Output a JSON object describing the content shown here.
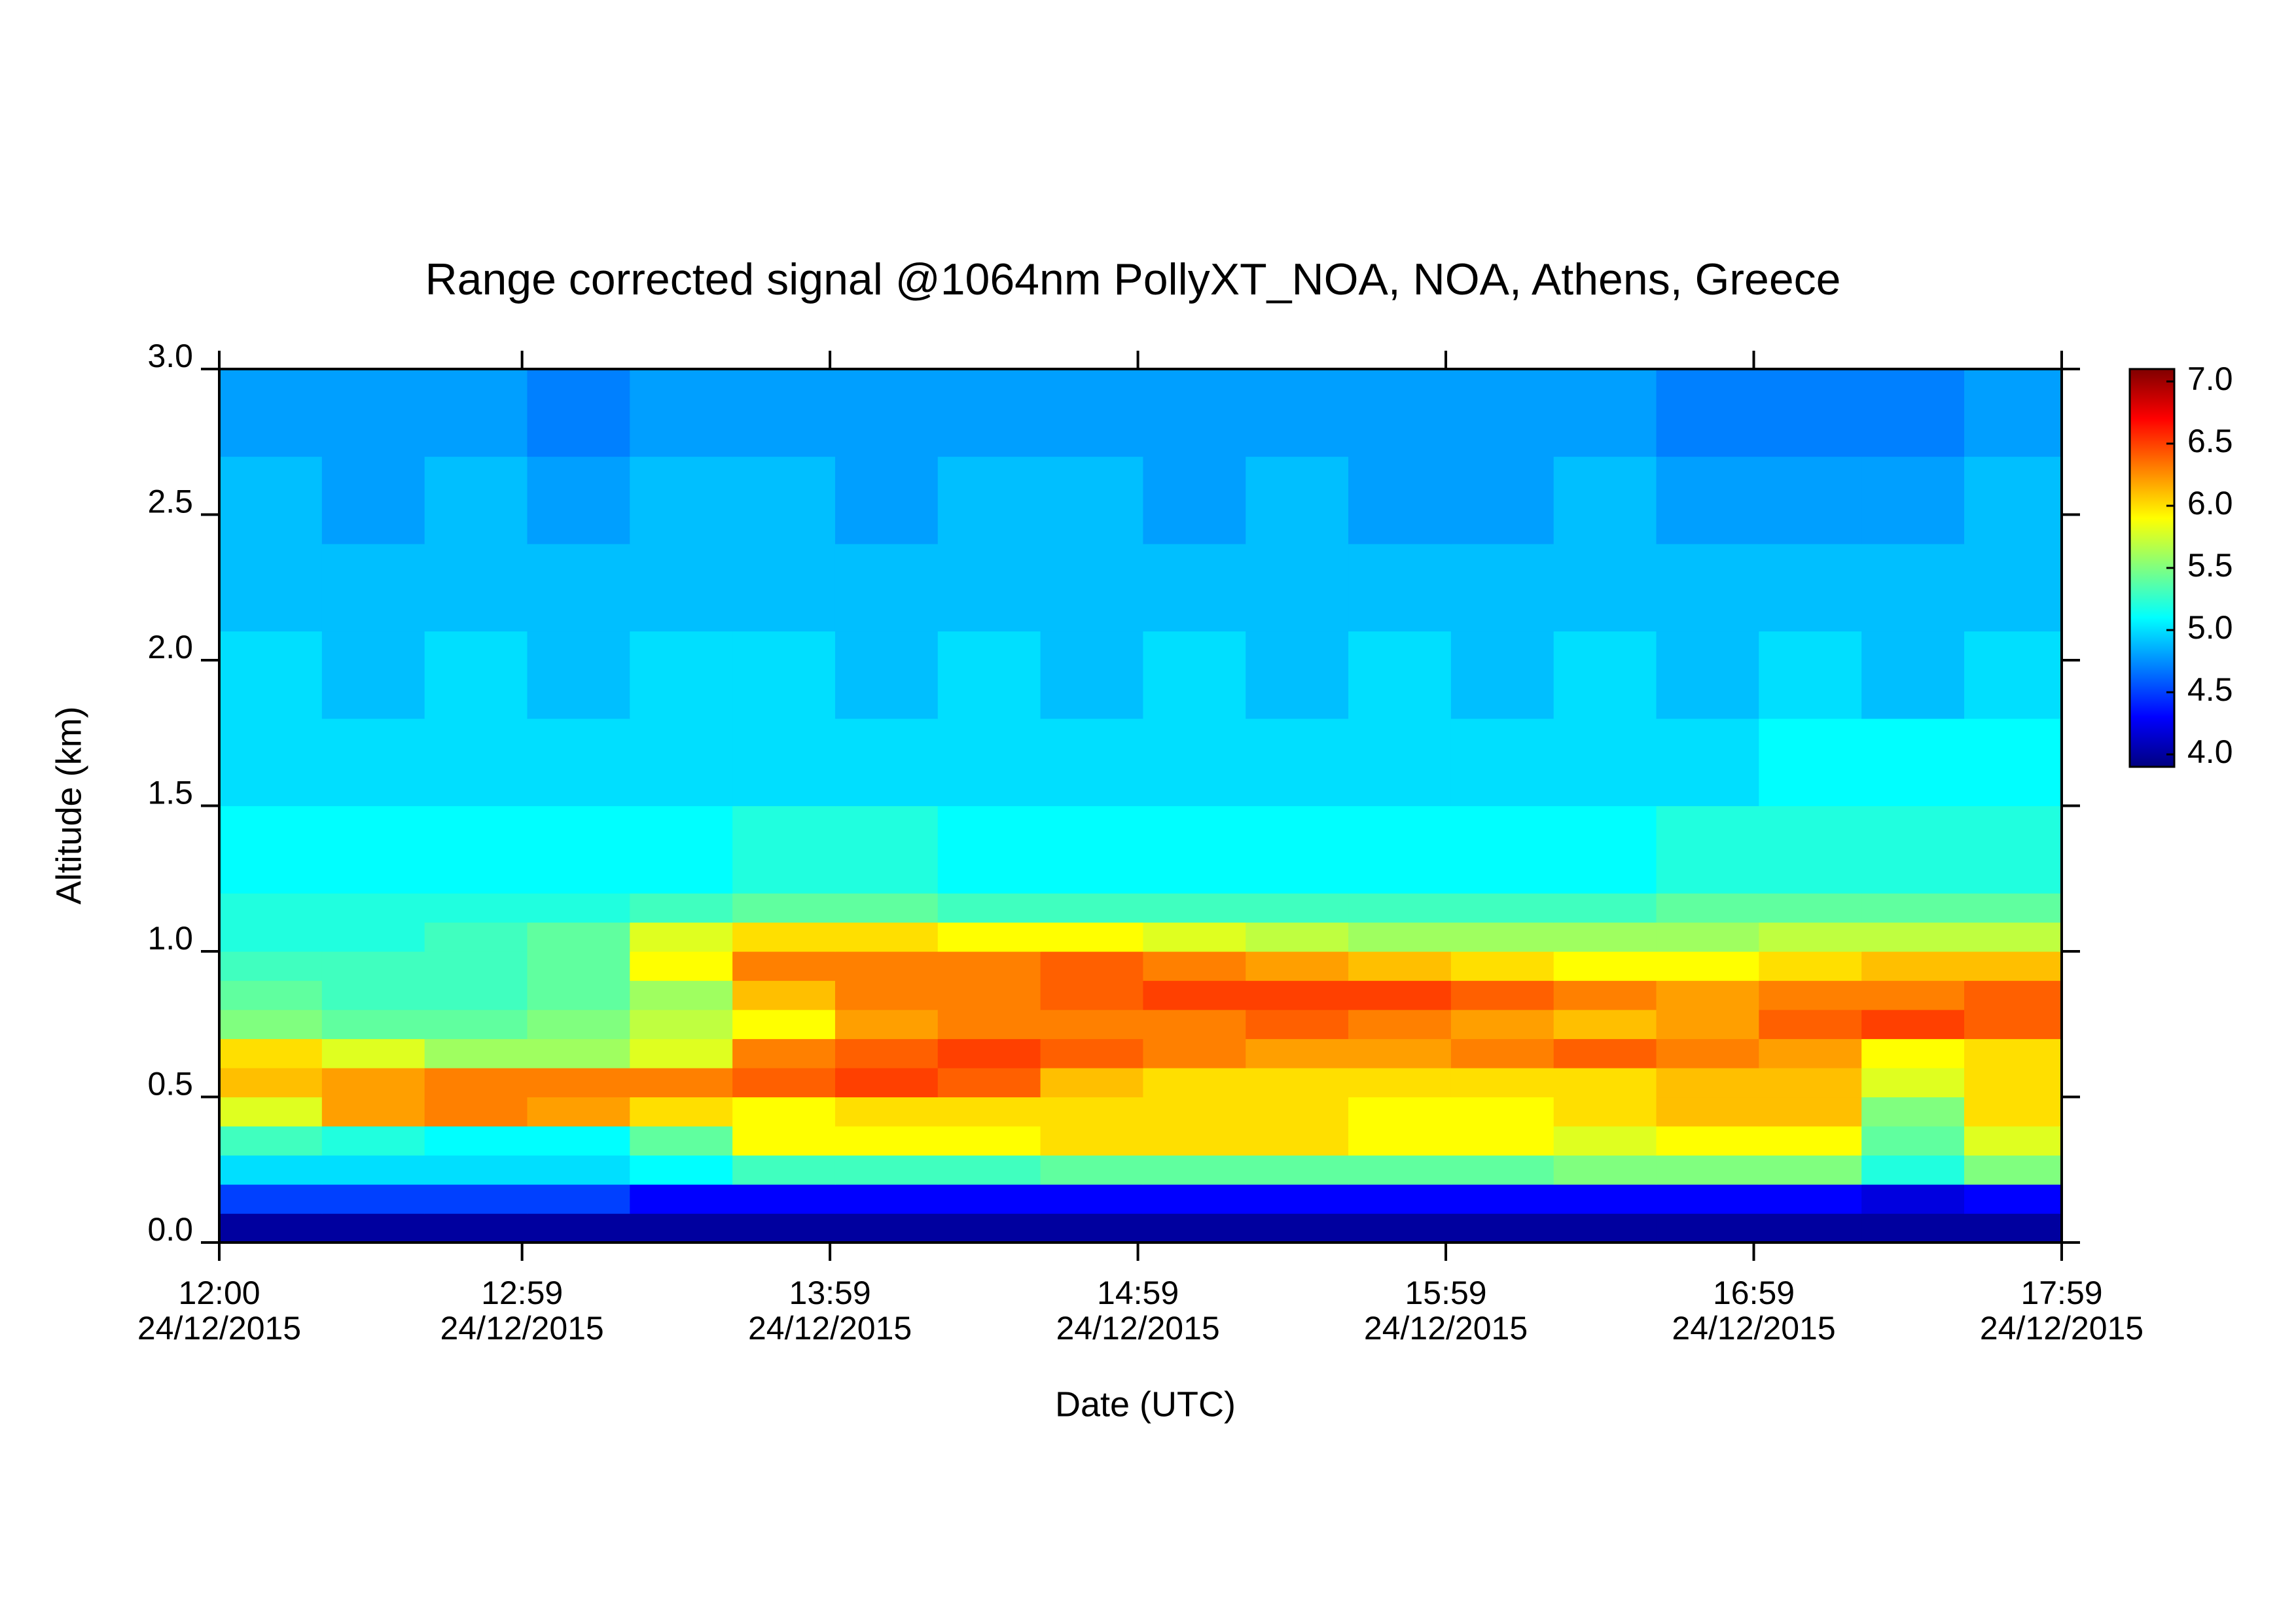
{
  "chart_data": {
    "type": "heatmap",
    "title": "Range corrected signal @1064nm  PollyXT_NOA, NOA, Athens, Greece",
    "xlabel": "Date (UTC)",
    "ylabel": "Altitude (km)",
    "colormap": "jet",
    "x": [
      "2015-12-24T12:00",
      "2015-12-24T12:20",
      "2015-12-24T12:40",
      "2015-12-24T13:00",
      "2015-12-24T13:20",
      "2015-12-24T13:40",
      "2015-12-24T14:00",
      "2015-12-24T14:20",
      "2015-12-24T14:40",
      "2015-12-24T15:00",
      "2015-12-24T15:20",
      "2015-12-24T15:40",
      "2015-12-24T16:00",
      "2015-12-24T16:20",
      "2015-12-24T16:40",
      "2015-12-24T17:00",
      "2015-12-24T17:20",
      "2015-12-24T17:40"
    ],
    "y": [
      0.0,
      0.1,
      0.2,
      0.3,
      0.4,
      0.5,
      0.6,
      0.7,
      0.8,
      0.9,
      1.0,
      1.1,
      1.2,
      1.5,
      1.8,
      2.1,
      2.4,
      2.7
    ],
    "z": [
      [
        4.0,
        4.0,
        4.0,
        4.0,
        4.0,
        4.0,
        4.0,
        4.0,
        4.0,
        4.0,
        4.0,
        4.0,
        4.0,
        4.0,
        4.0,
        4.0,
        4.0,
        4.0
      ],
      [
        4.5,
        4.5,
        4.5,
        4.5,
        4.3,
        4.3,
        4.3,
        4.3,
        4.3,
        4.3,
        4.3,
        4.3,
        4.3,
        4.3,
        4.3,
        4.3,
        4.2,
        4.3
      ],
      [
        5.0,
        5.0,
        5.0,
        5.0,
        5.1,
        5.3,
        5.3,
        5.3,
        5.4,
        5.4,
        5.4,
        5.4,
        5.4,
        5.5,
        5.5,
        5.5,
        5.2,
        5.5
      ],
      [
        5.3,
        5.2,
        5.1,
        5.1,
        5.4,
        5.9,
        5.9,
        5.9,
        6.0,
        6.0,
        6.0,
        5.9,
        5.9,
        5.8,
        5.9,
        5.9,
        5.4,
        5.8
      ],
      [
        5.8,
        6.2,
        6.3,
        6.2,
        6.0,
        5.9,
        6.0,
        6.0,
        6.0,
        6.0,
        6.0,
        5.9,
        5.9,
        6.0,
        6.1,
        6.1,
        5.5,
        6.0
      ],
      [
        6.1,
        6.2,
        6.3,
        6.3,
        6.3,
        6.4,
        6.5,
        6.4,
        6.1,
        6.0,
        6.0,
        6.0,
        6.0,
        6.0,
        6.1,
        6.1,
        5.8,
        6.0
      ],
      [
        6.0,
        5.8,
        5.6,
        5.6,
        5.8,
        6.3,
        6.4,
        6.5,
        6.4,
        6.3,
        6.2,
        6.2,
        6.3,
        6.4,
        6.3,
        6.2,
        5.9,
        6.0
      ],
      [
        5.5,
        5.4,
        5.4,
        5.5,
        5.7,
        5.9,
        6.2,
        6.3,
        6.3,
        6.3,
        6.4,
        6.3,
        6.2,
        6.1,
        6.2,
        6.4,
        6.5,
        6.4
      ],
      [
        5.4,
        5.3,
        5.3,
        5.4,
        5.6,
        6.1,
        6.3,
        6.3,
        6.4,
        6.5,
        6.5,
        6.5,
        6.4,
        6.3,
        6.2,
        6.3,
        6.3,
        6.4
      ],
      [
        5.3,
        5.3,
        5.3,
        5.4,
        5.9,
        6.3,
        6.3,
        6.3,
        6.4,
        6.3,
        6.2,
        6.1,
        6.0,
        5.9,
        5.9,
        6.0,
        6.1,
        6.1
      ],
      [
        5.2,
        5.2,
        5.3,
        5.4,
        5.8,
        6.0,
        6.0,
        5.9,
        5.9,
        5.8,
        5.7,
        5.6,
        5.6,
        5.6,
        5.6,
        5.7,
        5.7,
        5.7
      ],
      [
        5.2,
        5.2,
        5.2,
        5.2,
        5.3,
        5.4,
        5.4,
        5.3,
        5.3,
        5.3,
        5.3,
        5.3,
        5.3,
        5.3,
        5.4,
        5.4,
        5.4,
        5.4
      ],
      [
        5.1,
        5.1,
        5.1,
        5.1,
        5.1,
        5.2,
        5.2,
        5.1,
        5.1,
        5.1,
        5.1,
        5.1,
        5.1,
        5.1,
        5.2,
        5.2,
        5.2,
        5.2
      ],
      [
        5.0,
        5.0,
        5.0,
        5.0,
        5.0,
        5.0,
        5.0,
        5.0,
        5.0,
        5.0,
        5.0,
        5.0,
        5.0,
        5.0,
        5.0,
        5.1,
        5.1,
        5.1
      ],
      [
        5.0,
        4.9,
        5.0,
        4.9,
        5.0,
        5.0,
        4.9,
        5.0,
        4.9,
        5.0,
        4.9,
        5.0,
        4.9,
        5.0,
        4.9,
        5.0,
        4.9,
        5.0
      ],
      [
        4.9,
        4.9,
        4.9,
        4.9,
        4.9,
        4.9,
        4.9,
        4.9,
        4.9,
        4.9,
        4.9,
        4.9,
        4.9,
        4.9,
        4.9,
        4.9,
        4.9,
        4.9
      ],
      [
        4.9,
        4.8,
        4.9,
        4.8,
        4.9,
        4.9,
        4.8,
        4.9,
        4.9,
        4.8,
        4.9,
        4.8,
        4.8,
        4.9,
        4.8,
        4.8,
        4.8,
        4.9
      ],
      [
        4.8,
        4.8,
        4.8,
        4.7,
        4.8,
        4.8,
        4.8,
        4.8,
        4.8,
        4.8,
        4.8,
        4.8,
        4.8,
        4.8,
        4.7,
        4.7,
        4.7,
        4.8
      ]
    ],
    "xlim": [
      "2015-12-24T12:00",
      "2015-12-24T17:59"
    ],
    "xticks": [
      {
        "value": "2015-12-24T12:00",
        "label": "12:00\n24/12/2015"
      },
      {
        "value": "2015-12-24T12:59",
        "label": "12:59\n24/12/2015"
      },
      {
        "value": "2015-12-24T13:59",
        "label": "13:59\n24/12/2015"
      },
      {
        "value": "2015-12-24T14:59",
        "label": "14:59\n24/12/2015"
      },
      {
        "value": "2015-12-24T15:59",
        "label": "15:59\n24/12/2015"
      },
      {
        "value": "2015-12-24T16:59",
        "label": "16:59\n24/12/2015"
      },
      {
        "value": "2015-12-24T17:59",
        "label": "17:59\n24/12/2015"
      }
    ],
    "ylim": [
      0,
      3.0
    ],
    "yticks": [
      {
        "value": 0,
        "label": "0.0"
      },
      0.5,
      {
        "value": 1,
        "label": "1.0"
      },
      1.5,
      {
        "value": 2,
        "label": "2.0"
      },
      2.5,
      {
        "value": 3,
        "label": "3.0"
      }
    ],
    "zlim": [
      3.9,
      7.1
    ],
    "zticks": [
      {
        "value": 4,
        "label": "4.0"
      },
      4.5,
      {
        "value": 5,
        "label": "5.0"
      },
      5.5,
      {
        "value": 6,
        "label": "6.0"
      },
      6.5,
      {
        "value": 7,
        "label": "7.0"
      }
    ]
  }
}
